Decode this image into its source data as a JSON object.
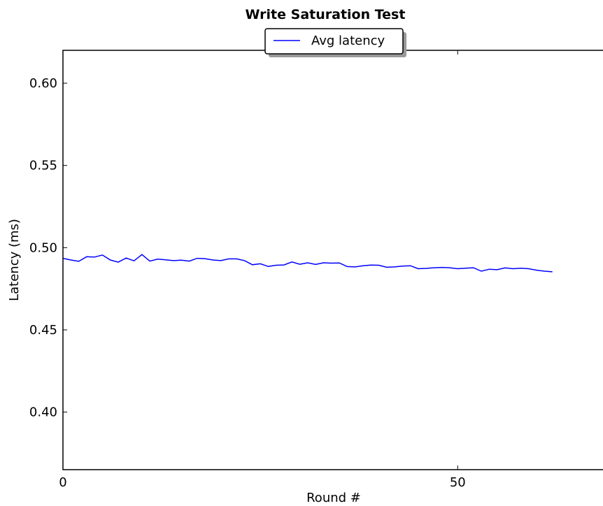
{
  "chart_data": {
    "type": "line",
    "title": "Write Saturation Test",
    "xlabel": "Round #",
    "ylabel": "Latency (ms)",
    "xlim": [
      0,
      70
    ],
    "ylim": [
      0.365,
      0.62
    ],
    "x_ticks": [
      0,
      50
    ],
    "x_tick_labels": [
      "0",
      "50"
    ],
    "y_ticks": [
      0.4,
      0.45,
      0.5,
      0.55,
      0.6
    ],
    "y_tick_labels": [
      "0.40",
      "0.45",
      "0.50",
      "0.55",
      "0.60"
    ],
    "grid": false,
    "legend_position": "top-center",
    "series": [
      {
        "name": "Avg latency",
        "color": "#0000ff",
        "x": [
          0,
          1,
          2,
          3,
          4,
          5,
          6,
          7,
          8,
          9,
          10,
          11,
          12,
          13,
          14,
          15,
          16,
          17,
          18,
          19,
          20,
          21,
          22,
          23,
          24,
          25,
          26,
          27,
          28,
          29,
          30,
          31,
          32,
          33,
          34,
          35,
          36,
          37,
          38,
          39,
          40,
          41,
          42,
          43,
          44,
          45,
          46,
          47,
          48,
          49,
          50,
          51,
          52,
          53,
          54,
          55,
          56,
          57,
          58,
          59,
          60,
          61,
          62
        ],
        "y": [
          0.4935,
          0.4925,
          0.4917,
          0.4945,
          0.4943,
          0.4955,
          0.4925,
          0.4912,
          0.4937,
          0.492,
          0.4958,
          0.4918,
          0.493,
          0.4926,
          0.4921,
          0.4924,
          0.4918,
          0.4935,
          0.4933,
          0.4925,
          0.4921,
          0.4932,
          0.4932,
          0.4921,
          0.4896,
          0.4902,
          0.4886,
          0.4893,
          0.4895,
          0.4913,
          0.4899,
          0.4908,
          0.4898,
          0.4908,
          0.4906,
          0.4907,
          0.4885,
          0.4883,
          0.489,
          0.4894,
          0.4893,
          0.4881,
          0.4883,
          0.4888,
          0.489,
          0.4872,
          0.4874,
          0.4878,
          0.488,
          0.4878,
          0.4872,
          0.4875,
          0.4878,
          0.4857,
          0.4869,
          0.4866,
          0.4877,
          0.4872,
          0.4875,
          0.4872,
          0.4863,
          0.4857,
          0.4853
        ]
      }
    ]
  }
}
